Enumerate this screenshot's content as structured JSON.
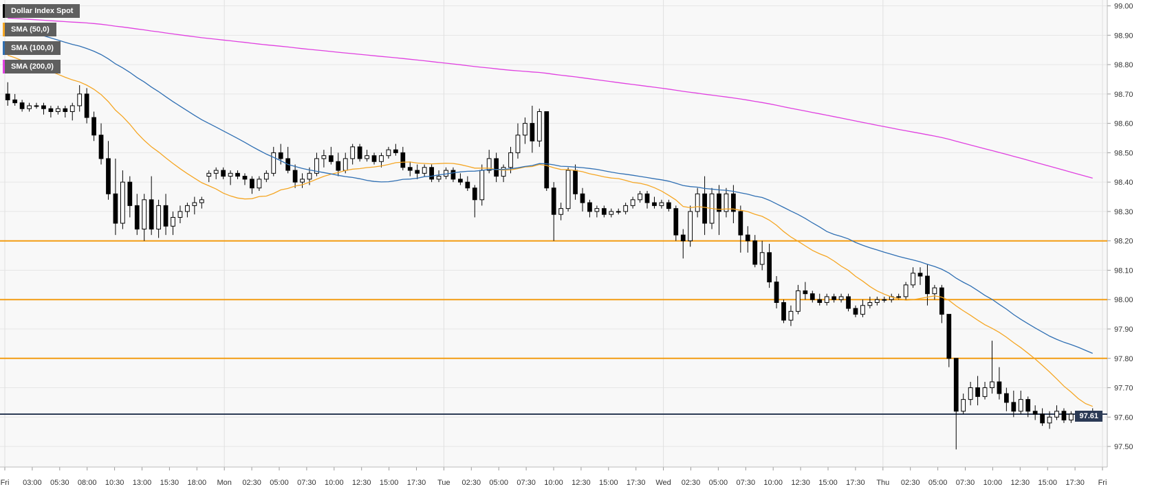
{
  "chart_data": {
    "type": "candlestick",
    "title": "Dollar Index Spot",
    "legend": [
      {
        "label": "Dollar Index Spot",
        "color": "#000000"
      },
      {
        "label": "SMA (50,0)",
        "color": "#f5a623"
      },
      {
        "label": "SMA (100,0)",
        "color": "#2f6fb3"
      },
      {
        "label": "SMA (200,0)",
        "color": "#e040e0"
      }
    ],
    "ylim": [
      97.43,
      99.02
    ],
    "y_ticks": [
      "99.00",
      "98.90",
      "98.80",
      "98.70",
      "98.60",
      "98.50",
      "98.40",
      "98.30",
      "98.20",
      "98.10",
      "98.00",
      "97.90",
      "97.80",
      "97.70",
      "97.60",
      "97.50"
    ],
    "x_labels": [
      "Fri",
      "03:00",
      "05:30",
      "08:00",
      "10:30",
      "13:00",
      "15:30",
      "18:00",
      "Mon",
      "02:30",
      "05:00",
      "07:30",
      "10:00",
      "12:30",
      "15:00",
      "17:30",
      "Tue",
      "02:30",
      "05:00",
      "07:30",
      "10:00",
      "12:30",
      "15:00",
      "17:30",
      "Wed",
      "02:30",
      "05:00",
      "07:30",
      "10:00",
      "12:30",
      "15:00",
      "17:30",
      "Thu",
      "02:30",
      "05:00",
      "07:30",
      "10:00",
      "12:30",
      "15:00",
      "17:30",
      "Fri"
    ],
    "day_separators": [
      "Mon",
      "Tue",
      "Wed",
      "Thu",
      "Fri"
    ],
    "horizontal_levels": [
      98.2,
      98.0,
      97.8
    ],
    "last_price": "97.61",
    "last_price_value": 97.61,
    "candles": [
      [
        98.7,
        98.74,
        98.66,
        98.68
      ],
      [
        98.68,
        98.7,
        98.66,
        98.67
      ],
      [
        98.67,
        98.68,
        98.64,
        98.65
      ],
      [
        98.65,
        98.67,
        98.64,
        98.66
      ],
      [
        98.66,
        98.67,
        98.65,
        98.66
      ],
      [
        98.66,
        98.67,
        98.63,
        98.65
      ],
      [
        98.65,
        98.66,
        98.62,
        98.64
      ],
      [
        98.64,
        98.66,
        98.63,
        98.65
      ],
      [
        98.65,
        98.66,
        98.62,
        98.64
      ],
      [
        98.64,
        98.67,
        98.61,
        98.66
      ],
      [
        98.66,
        98.73,
        98.64,
        98.7
      ],
      [
        98.7,
        98.72,
        98.6,
        98.62
      ],
      [
        98.62,
        98.64,
        98.54,
        98.56
      ],
      [
        98.56,
        98.6,
        98.46,
        98.48
      ],
      [
        98.48,
        98.54,
        98.34,
        98.36
      ],
      [
        98.36,
        98.48,
        98.22,
        98.26
      ],
      [
        98.26,
        98.44,
        98.24,
        98.4
      ],
      [
        98.4,
        98.42,
        98.28,
        98.32
      ],
      [
        98.32,
        98.36,
        98.22,
        98.24
      ],
      [
        98.24,
        98.36,
        98.2,
        98.34
      ],
      [
        98.34,
        98.42,
        98.22,
        98.24
      ],
      [
        98.24,
        98.34,
        98.21,
        98.32
      ],
      [
        98.32,
        98.36,
        98.22,
        98.25
      ],
      [
        98.25,
        98.3,
        98.22,
        98.28
      ],
      [
        98.28,
        98.32,
        98.26,
        98.3
      ],
      [
        98.3,
        98.33,
        98.28,
        98.32
      ],
      [
        98.32,
        98.35,
        98.29,
        98.33
      ],
      [
        98.33,
        98.35,
        98.31,
        98.34
      ],
      [
        98.42,
        98.44,
        98.4,
        98.43
      ],
      [
        98.43,
        98.45,
        98.41,
        98.44
      ],
      [
        98.44,
        98.45,
        98.41,
        98.42
      ],
      [
        98.42,
        98.44,
        98.39,
        98.43
      ],
      [
        98.43,
        98.44,
        98.41,
        98.42
      ],
      [
        98.42,
        98.43,
        98.39,
        98.41
      ],
      [
        98.41,
        98.42,
        98.36,
        98.38
      ],
      [
        98.38,
        98.42,
        98.37,
        98.41
      ],
      [
        98.41,
        98.44,
        98.4,
        98.43
      ],
      [
        98.43,
        98.52,
        98.42,
        98.5
      ],
      [
        98.5,
        98.53,
        98.46,
        98.48
      ],
      [
        98.48,
        98.52,
        98.43,
        98.44
      ],
      [
        98.44,
        98.46,
        98.38,
        98.4
      ],
      [
        98.4,
        98.43,
        98.38,
        98.41
      ],
      [
        98.41,
        98.45,
        98.39,
        98.43
      ],
      [
        98.43,
        98.5,
        98.42,
        98.48
      ],
      [
        98.48,
        98.51,
        98.45,
        98.49
      ],
      [
        98.49,
        98.52,
        98.46,
        98.47
      ],
      [
        98.47,
        98.5,
        98.42,
        98.44
      ],
      [
        98.44,
        98.5,
        98.43,
        98.48
      ],
      [
        98.48,
        98.53,
        98.46,
        98.52
      ],
      [
        98.52,
        98.53,
        98.47,
        98.48
      ],
      [
        98.48,
        98.51,
        98.47,
        98.49
      ],
      [
        98.49,
        98.5,
        98.46,
        98.47
      ],
      [
        98.47,
        98.5,
        98.45,
        98.49
      ],
      [
        98.49,
        98.52,
        98.48,
        98.51
      ],
      [
        98.51,
        98.53,
        98.49,
        98.5
      ],
      [
        98.5,
        98.52,
        98.44,
        98.45
      ],
      [
        98.45,
        98.47,
        98.42,
        98.44
      ],
      [
        98.44,
        98.46,
        98.41,
        98.43
      ],
      [
        98.43,
        98.46,
        98.42,
        98.45
      ],
      [
        98.45,
        98.46,
        98.4,
        98.41
      ],
      [
        98.41,
        98.44,
        98.4,
        98.42
      ],
      [
        98.42,
        98.45,
        98.41,
        98.44
      ],
      [
        98.44,
        98.45,
        98.4,
        98.41
      ],
      [
        98.41,
        98.43,
        98.39,
        98.4
      ],
      [
        98.4,
        98.42,
        98.37,
        98.38
      ],
      [
        98.38,
        98.39,
        98.28,
        98.34
      ],
      [
        98.34,
        98.46,
        98.32,
        98.44
      ],
      [
        98.44,
        98.51,
        98.43,
        98.48
      ],
      [
        98.48,
        98.5,
        98.4,
        98.42
      ],
      [
        98.42,
        98.46,
        98.4,
        98.45
      ],
      [
        98.45,
        98.52,
        98.43,
        98.5
      ],
      [
        98.5,
        98.6,
        98.48,
        98.56
      ],
      [
        98.56,
        98.62,
        98.53,
        98.6
      ],
      [
        98.6,
        98.66,
        98.5,
        98.54
      ],
      [
        98.54,
        98.65,
        98.52,
        98.64
      ],
      [
        98.64,
        98.64,
        98.37,
        98.38
      ],
      [
        98.38,
        98.4,
        98.2,
        98.29
      ],
      [
        98.29,
        98.33,
        98.27,
        98.31
      ],
      [
        98.31,
        98.45,
        98.3,
        98.44
      ],
      [
        98.44,
        98.46,
        98.34,
        98.36
      ],
      [
        98.36,
        98.38,
        98.3,
        98.33
      ],
      [
        98.33,
        98.34,
        98.28,
        98.3
      ],
      [
        98.3,
        98.32,
        98.28,
        98.31
      ],
      [
        98.31,
        98.32,
        98.28,
        98.29
      ],
      [
        98.29,
        98.31,
        98.28,
        98.3
      ],
      [
        98.3,
        98.31,
        98.29,
        98.3
      ],
      [
        98.3,
        98.33,
        98.29,
        98.32
      ],
      [
        98.32,
        98.35,
        98.31,
        98.34
      ],
      [
        98.34,
        98.37,
        98.33,
        98.36
      ],
      [
        98.36,
        98.37,
        98.31,
        98.33
      ],
      [
        98.33,
        98.35,
        98.31,
        98.32
      ],
      [
        98.32,
        98.34,
        98.31,
        98.33
      ],
      [
        98.33,
        98.34,
        98.3,
        98.31
      ],
      [
        98.31,
        98.32,
        98.2,
        98.22
      ],
      [
        98.22,
        98.24,
        98.14,
        98.2
      ],
      [
        98.2,
        98.32,
        98.18,
        98.3
      ],
      [
        98.3,
        98.38,
        98.28,
        98.36
      ],
      [
        98.36,
        98.42,
        98.22,
        98.26
      ],
      [
        98.26,
        98.38,
        98.24,
        98.36
      ],
      [
        98.36,
        98.39,
        98.22,
        98.3
      ],
      [
        98.3,
        98.38,
        98.28,
        98.36
      ],
      [
        98.36,
        98.39,
        98.26,
        98.3
      ],
      [
        98.3,
        98.32,
        98.16,
        98.22
      ],
      [
        98.22,
        98.25,
        98.16,
        98.2
      ],
      [
        98.2,
        98.22,
        98.11,
        98.12
      ],
      [
        98.12,
        98.2,
        98.1,
        98.16
      ],
      [
        98.16,
        98.19,
        98.04,
        98.06
      ],
      [
        98.06,
        98.08,
        97.97,
        97.99
      ],
      [
        97.99,
        98.0,
        97.92,
        97.93
      ],
      [
        97.93,
        97.98,
        97.91,
        97.96
      ],
      [
        97.96,
        98.05,
        97.95,
        98.03
      ],
      [
        98.03,
        98.06,
        98.0,
        98.02
      ],
      [
        98.02,
        98.03,
        97.99,
        98.0
      ],
      [
        98.0,
        98.02,
        97.98,
        97.99
      ],
      [
        97.99,
        98.02,
        97.98,
        98.01
      ],
      [
        98.01,
        98.02,
        97.99,
        98.0
      ],
      [
        98.0,
        98.02,
        97.99,
        98.01
      ],
      [
        98.01,
        98.02,
        97.96,
        97.97
      ],
      [
        97.97,
        97.98,
        97.94,
        97.95
      ],
      [
        97.95,
        98.0,
        97.94,
        97.98
      ],
      [
        97.98,
        98.01,
        97.97,
        97.99
      ],
      [
        97.99,
        98.01,
        97.98,
        98.0
      ],
      [
        98.0,
        98.01,
        97.99,
        98.0
      ],
      [
        98.0,
        98.02,
        97.99,
        98.01
      ],
      [
        98.01,
        98.02,
        98.0,
        98.01
      ],
      [
        98.01,
        98.06,
        98.0,
        98.05
      ],
      [
        98.05,
        98.11,
        98.04,
        98.09
      ],
      [
        98.09,
        98.11,
        98.05,
        98.08
      ],
      [
        98.08,
        98.12,
        97.98,
        98.02
      ],
      [
        98.02,
        98.05,
        98.0,
        98.04
      ],
      [
        98.04,
        98.05,
        97.92,
        97.95
      ],
      [
        97.95,
        97.95,
        97.77,
        97.8
      ],
      [
        97.8,
        97.8,
        97.49,
        97.62
      ],
      [
        97.62,
        97.68,
        97.61,
        97.66
      ],
      [
        97.66,
        97.72,
        97.64,
        97.7
      ],
      [
        97.7,
        97.74,
        97.64,
        97.67
      ],
      [
        97.67,
        97.72,
        97.66,
        97.7
      ],
      [
        97.7,
        97.86,
        97.68,
        97.72
      ],
      [
        97.72,
        97.77,
        97.66,
        97.68
      ],
      [
        97.68,
        97.7,
        97.62,
        97.65
      ],
      [
        97.65,
        97.69,
        97.6,
        97.62
      ],
      [
        97.62,
        97.69,
        97.61,
        97.66
      ],
      [
        97.66,
        97.67,
        97.6,
        97.62
      ],
      [
        97.62,
        97.64,
        97.59,
        97.61
      ],
      [
        97.61,
        97.63,
        97.57,
        97.58
      ],
      [
        97.58,
        97.62,
        97.56,
        97.6
      ],
      [
        97.6,
        97.64,
        97.59,
        97.62
      ],
      [
        97.62,
        97.63,
        97.58,
        97.59
      ],
      [
        97.59,
        97.62,
        97.58,
        97.61
      ],
      [
        97.61,
        97.62,
        97.59,
        97.6
      ],
      [
        97.6,
        97.62,
        97.59,
        97.61
      ],
      [
        97.61,
        97.63,
        97.6,
        97.61
      ]
    ]
  }
}
